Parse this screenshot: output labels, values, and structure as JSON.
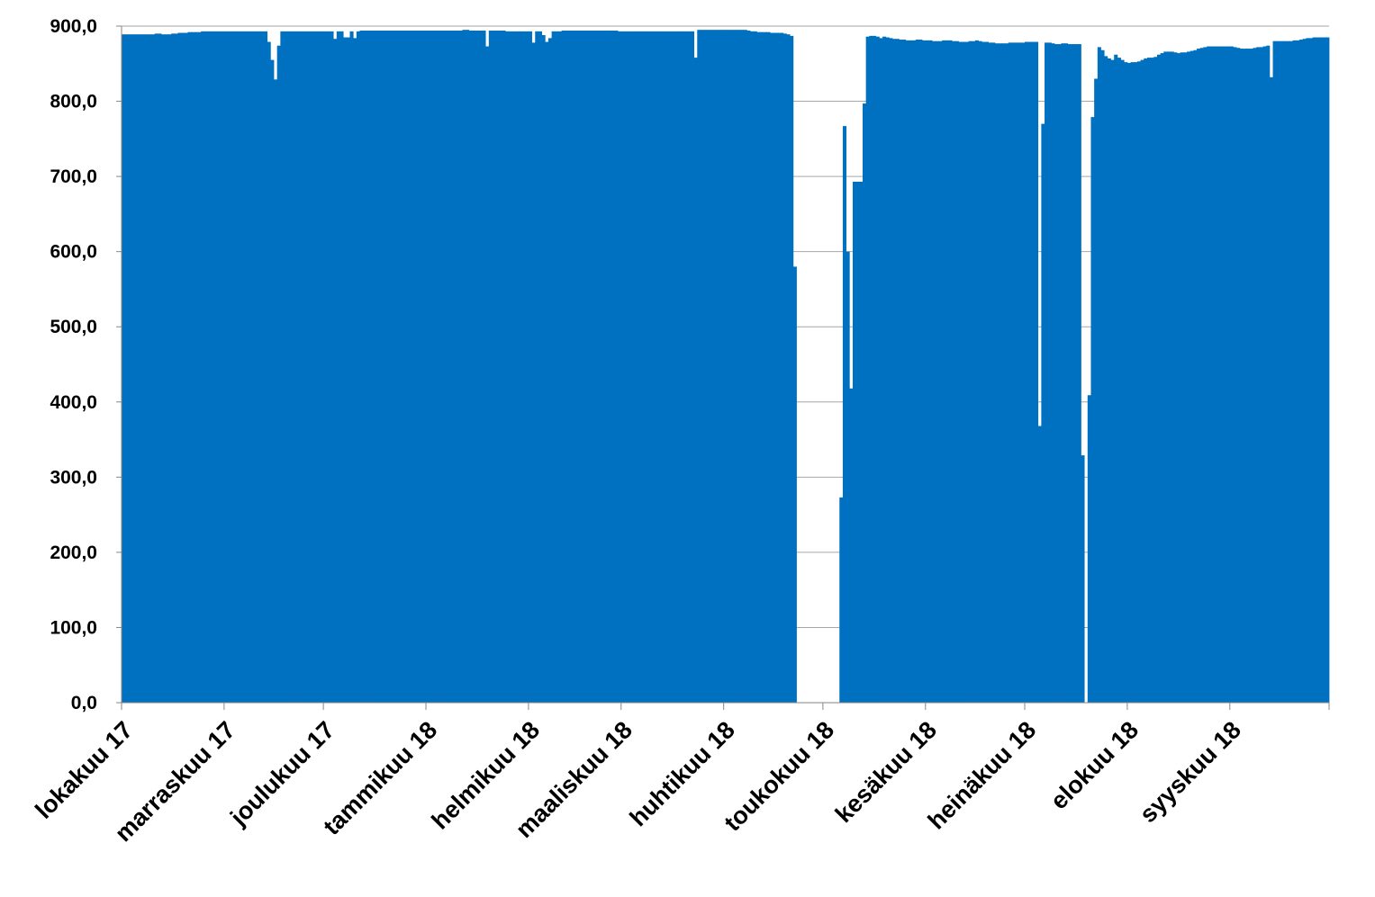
{
  "chart_data": {
    "type": "bar",
    "color": "#0070c0",
    "grid": true,
    "ylim": [
      0,
      900
    ],
    "yticks": [
      {
        "value": 0,
        "label": "0,0"
      },
      {
        "value": 100,
        "label": "100,0"
      },
      {
        "value": 200,
        "label": "200,0"
      },
      {
        "value": 300,
        "label": "300,0"
      },
      {
        "value": 400,
        "label": "400,0"
      },
      {
        "value": 500,
        "label": "500,0"
      },
      {
        "value": 600,
        "label": "600,0"
      },
      {
        "value": 700,
        "label": "700,0"
      },
      {
        "value": 800,
        "label": "800,0"
      },
      {
        "value": 900,
        "label": "900,0"
      }
    ],
    "categories": [
      "lokakuu 17",
      null,
      null,
      null,
      null,
      null,
      null,
      null,
      null,
      null,
      null,
      null,
      null,
      null,
      null,
      null,
      null,
      null,
      null,
      null,
      null,
      null,
      null,
      null,
      null,
      null,
      null,
      null,
      null,
      null,
      null,
      "marraskuu 17",
      null,
      null,
      null,
      null,
      null,
      null,
      null,
      null,
      null,
      null,
      null,
      null,
      null,
      null,
      null,
      null,
      null,
      null,
      null,
      null,
      null,
      null,
      null,
      null,
      null,
      null,
      null,
      null,
      null,
      "joulukuu 17",
      null,
      null,
      null,
      null,
      null,
      null,
      null,
      null,
      null,
      null,
      null,
      null,
      null,
      null,
      null,
      null,
      null,
      null,
      null,
      null,
      null,
      null,
      null,
      null,
      null,
      null,
      null,
      null,
      null,
      null,
      "tammikuu 18",
      null,
      null,
      null,
      null,
      null,
      null,
      null,
      null,
      null,
      null,
      null,
      null,
      null,
      null,
      null,
      null,
      null,
      null,
      null,
      null,
      null,
      null,
      null,
      null,
      null,
      null,
      null,
      null,
      null,
      null,
      "helmikuu 18",
      null,
      null,
      null,
      null,
      null,
      null,
      null,
      null,
      null,
      null,
      null,
      null,
      null,
      null,
      null,
      null,
      null,
      null,
      null,
      null,
      null,
      null,
      null,
      null,
      null,
      null,
      null,
      "maaliskuu 18",
      null,
      null,
      null,
      null,
      null,
      null,
      null,
      null,
      null,
      null,
      null,
      null,
      null,
      null,
      null,
      null,
      null,
      null,
      null,
      null,
      null,
      null,
      null,
      null,
      null,
      null,
      null,
      null,
      null,
      null,
      "huhtikuu 18",
      null,
      null,
      null,
      null,
      null,
      null,
      null,
      null,
      null,
      null,
      null,
      null,
      null,
      null,
      null,
      null,
      null,
      null,
      null,
      null,
      null,
      null,
      null,
      null,
      null,
      null,
      null,
      null,
      null,
      "toukokuu 18",
      null,
      null,
      null,
      null,
      null,
      null,
      null,
      null,
      null,
      null,
      null,
      null,
      null,
      null,
      null,
      null,
      null,
      null,
      null,
      null,
      null,
      null,
      null,
      null,
      null,
      null,
      null,
      null,
      null,
      null,
      "kesäkuu 18",
      null,
      null,
      null,
      null,
      null,
      null,
      null,
      null,
      null,
      null,
      null,
      null,
      null,
      null,
      null,
      null,
      null,
      null,
      null,
      null,
      null,
      null,
      null,
      null,
      null,
      null,
      null,
      null,
      null,
      "heinäkuu 18",
      null,
      null,
      null,
      null,
      null,
      null,
      null,
      null,
      null,
      null,
      null,
      null,
      null,
      null,
      null,
      null,
      null,
      null,
      null,
      null,
      null,
      null,
      null,
      null,
      null,
      null,
      null,
      null,
      null,
      null,
      "elokuu 18",
      null,
      null,
      null,
      null,
      null,
      null,
      null,
      null,
      null,
      null,
      null,
      null,
      null,
      null,
      null,
      null,
      null,
      null,
      null,
      null,
      null,
      null,
      null,
      null,
      null,
      null,
      null,
      null,
      null,
      null,
      "syyskuu 18",
      null,
      null,
      null,
      null,
      null,
      null,
      null,
      null,
      null,
      null,
      null,
      null,
      null,
      null,
      null,
      null,
      null,
      null,
      null,
      null,
      null,
      null,
      null,
      null,
      null,
      null,
      null,
      null,
      null
    ],
    "values": [
      889,
      889,
      889,
      889,
      889,
      889,
      889,
      889,
      889,
      889,
      890,
      890,
      889,
      889,
      889,
      890,
      890,
      891,
      891,
      891,
      892,
      892,
      892,
      892,
      893,
      893,
      893,
      893,
      893,
      893,
      893,
      893,
      893,
      893,
      893,
      893,
      893,
      893,
      893,
      893,
      893,
      893,
      893,
      893,
      879,
      855,
      829,
      874,
      893,
      893,
      893,
      893,
      893,
      893,
      893,
      893,
      893,
      893,
      893,
      893,
      893,
      893,
      893,
      893,
      883,
      893,
      893,
      885,
      885,
      893,
      884,
      893,
      894,
      894,
      894,
      894,
      894,
      894,
      894,
      894,
      894,
      894,
      894,
      894,
      894,
      894,
      894,
      894,
      894,
      894,
      894,
      894,
      894,
      894,
      894,
      894,
      894,
      894,
      894,
      894,
      894,
      894,
      894,
      895,
      895,
      894,
      894,
      894,
      894,
      894,
      873,
      894,
      894,
      894,
      894,
      894,
      893,
      893,
      893,
      893,
      893,
      893,
      893,
      893,
      878,
      893,
      893,
      888,
      879,
      884,
      893,
      893,
      893,
      894,
      894,
      894,
      894,
      894,
      894,
      894,
      894,
      894,
      894,
      894,
      894,
      894,
      894,
      894,
      894,
      894,
      893,
      893,
      893,
      893,
      893,
      893,
      893,
      893,
      893,
      893,
      893,
      893,
      893,
      893,
      893,
      893,
      893,
      893,
      893,
      893,
      893,
      893,
      893,
      858,
      895,
      895,
      895,
      895,
      895,
      895,
      895,
      895,
      895,
      895,
      895,
      895,
      895,
      895,
      895,
      894,
      893,
      893,
      892,
      892,
      892,
      892,
      891,
      891,
      891,
      891,
      890,
      889,
      887,
      580,
      null,
      null,
      null,
      null,
      null,
      null,
      null,
      null,
      null,
      null,
      null,
      null,
      null,
      273,
      767,
      600,
      418,
      693,
      693,
      693,
      797,
      886,
      887,
      887,
      886,
      884,
      886,
      885,
      884,
      883,
      883,
      882,
      882,
      881,
      881,
      881,
      882,
      882,
      881,
      881,
      881,
      880,
      880,
      880,
      881,
      881,
      881,
      880,
      880,
      879,
      879,
      879,
      880,
      880,
      881,
      880,
      879,
      879,
      878,
      878,
      877,
      877,
      877,
      877,
      878,
      878,
      878,
      878,
      878,
      879,
      879,
      879,
      879,
      368,
      770,
      878,
      878,
      877,
      876,
      876,
      877,
      877,
      876,
      876,
      876,
      876,
      329,
      null,
      409,
      779,
      830,
      872,
      868,
      860,
      857,
      855,
      862,
      858,
      855,
      852,
      851,
      852,
      852,
      853,
      855,
      857,
      858,
      858,
      859,
      862,
      864,
      866,
      866,
      866,
      865,
      864,
      865,
      865,
      866,
      867,
      868,
      870,
      871,
      872,
      873,
      873,
      873,
      873,
      873,
      873,
      873,
      873,
      872,
      871,
      870,
      870,
      870,
      870,
      871,
      872,
      872,
      873,
      874,
      832,
      880,
      880,
      880,
      880,
      880,
      880,
      881,
      881,
      882,
      883,
      884,
      884,
      885,
      885,
      885,
      885,
      885
    ]
  }
}
